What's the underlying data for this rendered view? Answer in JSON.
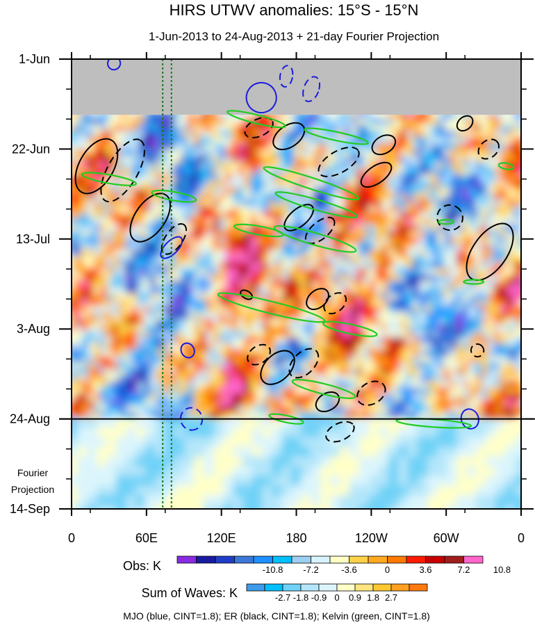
{
  "chart_data": {
    "type": "heatmap",
    "title": "HIRS UTWV anomalies: 15°S - 15°N",
    "subtitle": "1-Jun-2013 to 24-Aug-2013 + 21-day Fourier Projection",
    "x_ticks": [
      "0",
      "60E",
      "120E",
      "180",
      "120W",
      "60W",
      "0"
    ],
    "x_range_deg": [
      0,
      360
    ],
    "y_ticks": [
      "1-Jun",
      "22-Jun",
      "13-Jul",
      "3-Aug",
      "24-Aug",
      "14-Sep"
    ],
    "y_range_days": [
      0,
      105
    ],
    "projection_start_label": "24-Aug",
    "projection_label_line1": "Fourier",
    "projection_label_line2": "Projection",
    "obs_legend": {
      "label": "Obs: K",
      "tick_labels": [
        "-10.8",
        "-7.2",
        "-3.6",
        "0",
        "3.6",
        "7.2",
        "10.8"
      ],
      "colors": [
        "#8a2be2",
        "#1a1aa0",
        "#1f3ec8",
        "#3c78d8",
        "#1e90ff",
        "#00bfff",
        "#9dcff2",
        "#d8f3fb",
        "#ffffc8",
        "#ffd24a",
        "#ffaa1e",
        "#ff7a00",
        "#ff1a00",
        "#c80000",
        "#a01e1e",
        "#ff66cc"
      ]
    },
    "waves_legend": {
      "label": "Sum of Waves: K",
      "tick_labels": [
        "-2.7",
        "-1.8",
        "-0.9",
        "0",
        "0.9",
        "1.8",
        "2.7"
      ],
      "colors": [
        "#3d9be9",
        "#00bfff",
        "#6fd2f7",
        "#b4e6fa",
        "#dcf5fd",
        "#ffffc8",
        "#ffe680",
        "#ffc830",
        "#ffa020",
        "#ff7a10"
      ]
    },
    "contour_info": "MJO (blue, CINT=1.8); ER (black, CINT=1.8); Kelvin (green, CINT=1.8)",
    "series": [
      {
        "name": "MJO",
        "color": "#1a1adc"
      },
      {
        "name": "ER",
        "color": "#000000"
      },
      {
        "name": "Kelvin",
        "color": "#22cc22"
      }
    ],
    "reference_longitudes": [
      73,
      80
    ],
    "data_start_day": 13,
    "missing_color": "#bebebe"
  }
}
